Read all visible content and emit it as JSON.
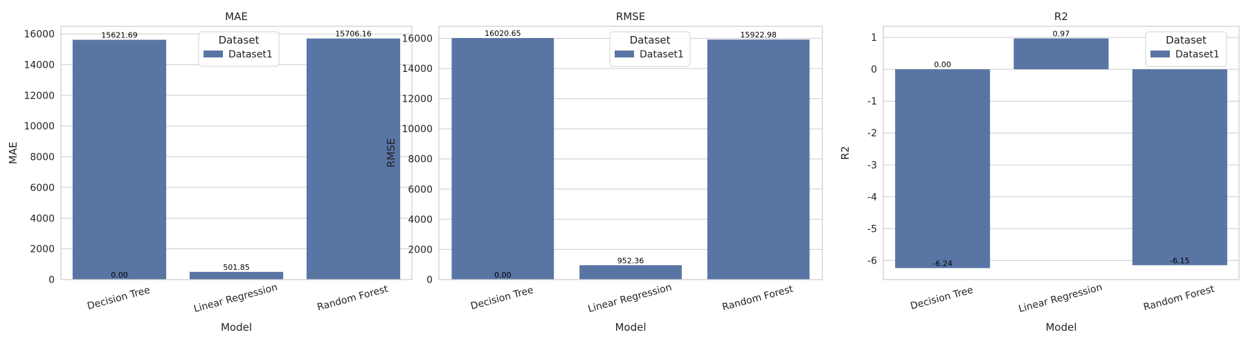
{
  "chart_data": [
    {
      "type": "bar",
      "title": "MAE",
      "xlabel": "Model",
      "ylabel": "MAE",
      "categories": [
        "Decision Tree",
        "Linear Regression",
        "Random Forest"
      ],
      "series": [
        {
          "name": "Dataset1",
          "values": [
            15621.69,
            501.85,
            15706.16
          ]
        }
      ],
      "data_labels": [
        {
          "category": "Decision Tree",
          "value": 15621.69,
          "text": "15621.69"
        },
        {
          "category": "Decision Tree",
          "value": 0,
          "text": "0.00"
        },
        {
          "category": "Linear Regression",
          "value": 501.85,
          "text": "501.85"
        },
        {
          "category": "Random Forest",
          "value": 15706.16,
          "text": "15706.16"
        }
      ],
      "ylim": [
        0,
        16500
      ],
      "yticks": [
        0,
        2000,
        4000,
        6000,
        8000,
        10000,
        12000,
        14000,
        16000
      ],
      "legend": {
        "title": "Dataset",
        "entries": [
          "Dataset1"
        ],
        "position": "top-center"
      },
      "grid": "horizontal"
    },
    {
      "type": "bar",
      "title": "RMSE",
      "xlabel": "Model",
      "ylabel": "RMSE",
      "categories": [
        "Decision Tree",
        "Linear Regression",
        "Random Forest"
      ],
      "series": [
        {
          "name": "Dataset1",
          "values": [
            16020.65,
            952.36,
            15922.98
          ]
        }
      ],
      "data_labels": [
        {
          "category": "Decision Tree",
          "value": 16020.65,
          "text": "16020.65"
        },
        {
          "category": "Decision Tree",
          "value": 0,
          "text": "0.00"
        },
        {
          "category": "Linear Regression",
          "value": 952.36,
          "text": "952.36"
        },
        {
          "category": "Random Forest",
          "value": 15922.98,
          "text": "15922.98"
        }
      ],
      "ylim": [
        0,
        16800
      ],
      "yticks": [
        0,
        2000,
        4000,
        6000,
        8000,
        10000,
        12000,
        14000,
        16000
      ],
      "legend": {
        "title": "Dataset",
        "entries": [
          "Dataset1"
        ],
        "position": "top-center"
      },
      "grid": "horizontal"
    },
    {
      "type": "bar",
      "title": "R2",
      "xlabel": "Model",
      "ylabel": "R2",
      "categories": [
        "Decision Tree",
        "Linear Regression",
        "Random Forest"
      ],
      "series": [
        {
          "name": "Dataset1",
          "values": [
            -6.24,
            0.97,
            -6.15
          ]
        }
      ],
      "data_labels": [
        {
          "category": "Decision Tree",
          "value": 0,
          "text": "0.00"
        },
        {
          "category": "Decision Tree",
          "value": -6.24,
          "text": "-6.24"
        },
        {
          "category": "Linear Regression",
          "value": 0.97,
          "text": "0.97"
        },
        {
          "category": "Random Forest",
          "value": -6.15,
          "text": "-6.15"
        }
      ],
      "ylim": [
        -6.6,
        1.35
      ],
      "yticks": [
        -6,
        -5,
        -4,
        -3,
        -2,
        -1,
        0,
        1
      ],
      "legend": {
        "title": "Dataset",
        "entries": [
          "Dataset1"
        ],
        "position": "top-right"
      },
      "grid": "horizontal"
    }
  ],
  "colors": {
    "bar": "#5975a4",
    "grid": "#cccccc",
    "frame": "#cccccc"
  }
}
